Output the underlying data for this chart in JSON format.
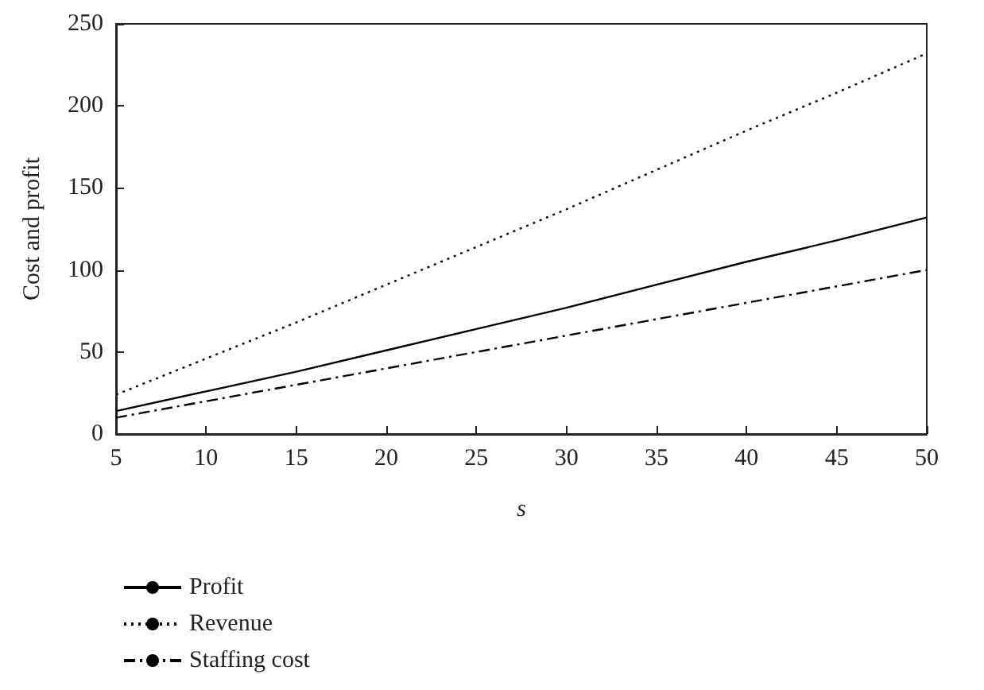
{
  "chart_data": {
    "type": "line",
    "xlabel": "s",
    "ylabel": "Cost and profit",
    "x": [
      5,
      10,
      15,
      20,
      25,
      30,
      35,
      40,
      45,
      50
    ],
    "series": [
      {
        "name": "Profit",
        "color": "#000000",
        "line_style": "solid",
        "values": [
          14,
          26,
          38,
          51,
          64,
          77,
          91,
          105,
          118,
          132
        ]
      },
      {
        "name": "Revenue",
        "color": "#000000",
        "line_style": "dotted",
        "values": [
          24,
          46,
          68,
          91,
          114,
          137,
          161,
          185,
          208,
          232
        ]
      },
      {
        "name": "Staffing cost",
        "color": "#000000",
        "line_style": "dashdot",
        "values": [
          10,
          20,
          30,
          40,
          50,
          60,
          70,
          80,
          90,
          100
        ]
      }
    ],
    "xlim": [
      5,
      50
    ],
    "xticks": [
      5,
      10,
      15,
      20,
      25,
      30,
      35,
      40,
      45,
      50
    ],
    "ylim": [
      0,
      250
    ],
    "yticks": [
      0,
      50,
      100,
      150,
      200,
      250
    ],
    "grid": false,
    "legend": "bottom left",
    "marker": "none"
  }
}
